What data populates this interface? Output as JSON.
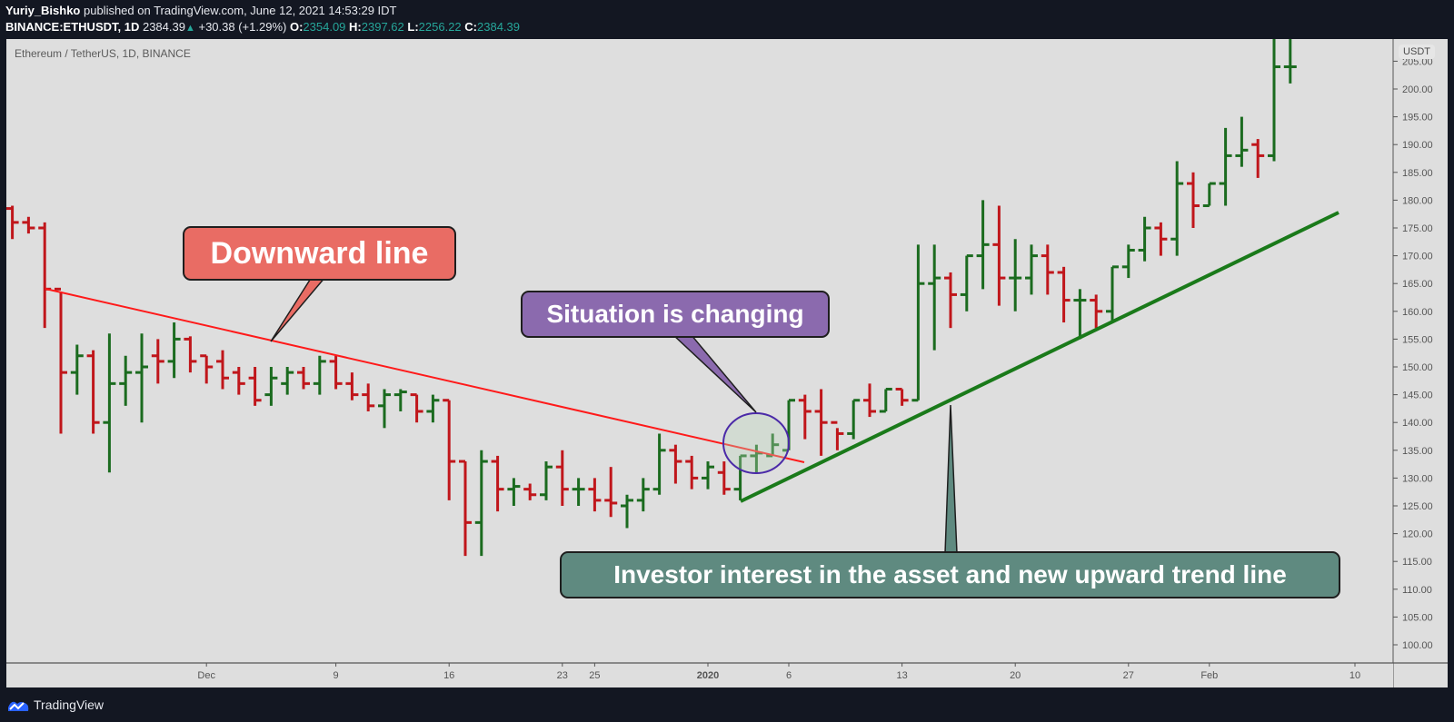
{
  "header": {
    "author": "Yuriy_Bishko",
    "published": " published on TradingView.com, June 12, 2021 14:53:29 IDT",
    "symbol": "BINANCE:ETHUSDT, 1D",
    "last": "2384.39",
    "change": "+30.38 (+1.29%)",
    "o_label": "O:",
    "o": "2354.09",
    "h_label": "H:",
    "h": "2397.62",
    "l_label": "L:",
    "l": "2256.22",
    "c_label": "C:",
    "c": "2384.39"
  },
  "chart": {
    "legend": "Ethereum / TetherUS, 1D, BINANCE",
    "currency": "USDT"
  },
  "annotations": {
    "downward": "Downward line",
    "situation": "Situation is changing",
    "investor": "Investor interest in the asset and new upward trend line"
  },
  "footer": {
    "brand": "TradingView"
  },
  "colors": {
    "up": "#1b6b1f",
    "down": "#c0161b",
    "background": "#dedede",
    "downtrend_line": "#ff1a1a",
    "uptrend_line": "#1a7a1a",
    "callout_red": "#e96c64",
    "callout_purple": "#8b6aae",
    "callout_teal": "#5f8a80"
  },
  "chart_data": {
    "type": "ohlc",
    "title": "Ethereum / TetherUS, 1D, BINANCE",
    "xlabel": "",
    "ylabel": "USDT",
    "ylim": [
      97,
      212
    ],
    "y_ticks": [
      "100.00",
      "105.00",
      "110.00",
      "115.00",
      "120.00",
      "125.00",
      "130.00",
      "135.00",
      "140.00",
      "145.00",
      "150.00",
      "155.00",
      "160.00",
      "165.00",
      "170.00",
      "175.00",
      "180.00",
      "185.00",
      "190.00",
      "195.00",
      "200.00",
      "205.00"
    ],
    "x_ticks": [
      {
        "label": "25",
        "day": -7
      },
      {
        "label": "Dec",
        "day": -31
      },
      {
        "label": "9",
        "day": -23
      },
      {
        "label": "16",
        "day": -16
      },
      {
        "label": "23",
        "day": -9
      },
      {
        "label": "2020",
        "day": 0
      },
      {
        "label": "6",
        "day": 5
      },
      {
        "label": "13",
        "day": 12
      },
      {
        "label": "20",
        "day": 19
      },
      {
        "label": "27",
        "day": 26
      },
      {
        "label": "Feb",
        "day": 31
      },
      {
        "label": "10",
        "day": 40
      }
    ],
    "grid": false,
    "first_day_offset": -43,
    "bars": [
      [
        178.5,
        179,
        173,
        176
      ],
      [
        176,
        177,
        174,
        175
      ],
      [
        175,
        176,
        157,
        164
      ],
      [
        164,
        163.5,
        138,
        149
      ],
      [
        149,
        154,
        145,
        152
      ],
      [
        152,
        153,
        138,
        140
      ],
      [
        140,
        156,
        131,
        147
      ],
      [
        147,
        152,
        143,
        149
      ],
      [
        149,
        156,
        140,
        150
      ],
      [
        152,
        155,
        147,
        151
      ],
      [
        151,
        158,
        148,
        155
      ],
      [
        155,
        155.5,
        149,
        151
      ],
      [
        152,
        152,
        147,
        150
      ],
      [
        151,
        153,
        146,
        148
      ],
      [
        149,
        150,
        145,
        147
      ],
      [
        148,
        150,
        143,
        144
      ],
      [
        145,
        150,
        143,
        148
      ],
      [
        147,
        150,
        145,
        149
      ],
      [
        149,
        150,
        146,
        147
      ],
      [
        147,
        152,
        145,
        151
      ],
      [
        151,
        152,
        146,
        147
      ],
      [
        147,
        149,
        144,
        145
      ],
      [
        145,
        147,
        142,
        143
      ],
      [
        143,
        146,
        139,
        145
      ],
      [
        145,
        146,
        142,
        145.5
      ],
      [
        145,
        145,
        140,
        142
      ],
      [
        142,
        145,
        140,
        144
      ],
      [
        144,
        144,
        126,
        133
      ],
      [
        133,
        133,
        116,
        122
      ],
      [
        122,
        135,
        116,
        133
      ],
      [
        133,
        134,
        124,
        128
      ],
      [
        128,
        130,
        125,
        128.5
      ],
      [
        128,
        129,
        126,
        127
      ],
      [
        127,
        133,
        126,
        132
      ],
      [
        132,
        135,
        125,
        128
      ],
      [
        128,
        130,
        125,
        128
      ],
      [
        128,
        130,
        124,
        126
      ],
      [
        126,
        132,
        123,
        125.5
      ],
      [
        125,
        127,
        121,
        126
      ],
      [
        126,
        130,
        124,
        128
      ],
      [
        128,
        138,
        127,
        135
      ],
      [
        135,
        136,
        129,
        133
      ],
      [
        133,
        134,
        128,
        130
      ],
      [
        130,
        133,
        128,
        132
      ],
      [
        131,
        133,
        127,
        128
      ],
      [
        128,
        134,
        126,
        134
      ],
      [
        134,
        136,
        131,
        134.5
      ],
      [
        134,
        138,
        134,
        136
      ],
      [
        135,
        144,
        135,
        144
      ],
      [
        144,
        145,
        137,
        142
      ],
      [
        142,
        146,
        134,
        140
      ],
      [
        140,
        139,
        135,
        138
      ],
      [
        138,
        144,
        137,
        144
      ],
      [
        144,
        147,
        141,
        142
      ],
      [
        142,
        146,
        142,
        146
      ],
      [
        146,
        146,
        143,
        144
      ],
      [
        144,
        172,
        144,
        165
      ],
      [
        165,
        172,
        153,
        166
      ],
      [
        166,
        167,
        157,
        163
      ],
      [
        163,
        170,
        160,
        170
      ],
      [
        170,
        180,
        164,
        172
      ],
      [
        172,
        179,
        161,
        166
      ],
      [
        166,
        173,
        160,
        166
      ],
      [
        166,
        172,
        163,
        170
      ],
      [
        170,
        172,
        163,
        167
      ],
      [
        167,
        168,
        158,
        162
      ],
      [
        162,
        164,
        155,
        162
      ],
      [
        162,
        163,
        157,
        160
      ],
      [
        160,
        168,
        158,
        168
      ],
      [
        168,
        172,
        166,
        171
      ],
      [
        171,
        177,
        169,
        175
      ],
      [
        175,
        176,
        170,
        173
      ],
      [
        173,
        187,
        170,
        183
      ],
      [
        183,
        185,
        175,
        179
      ],
      [
        179,
        183,
        179,
        183
      ],
      [
        183,
        193,
        179,
        188
      ],
      [
        188,
        195,
        186,
        189
      ],
      [
        190,
        191,
        184,
        188
      ],
      [
        188,
        213,
        187,
        204
      ],
      [
        204,
        214,
        201,
        204
      ]
    ],
    "lines": [
      {
        "name": "Downward line",
        "from": [
          -42,
          164
        ],
        "to": [
          5,
          133
        ]
      },
      {
        "name": "Upward trend line",
        "from": [
          2,
          126
        ],
        "to": [
          39,
          178
        ]
      }
    ]
  }
}
